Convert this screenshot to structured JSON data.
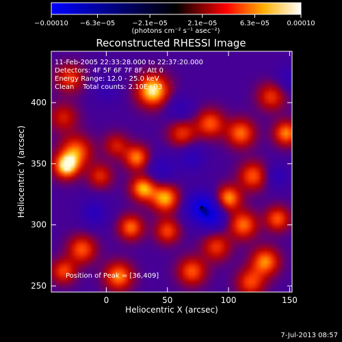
{
  "chart_data": {
    "type": "heatmap",
    "title": "Reconstructed RHESSI Image",
    "xlabel": "Heliocentric X (arcsec)",
    "ylabel": "Heliocentric Y (arcsec)",
    "xlim": [
      -45,
      152
    ],
    "ylim": [
      245,
      442
    ],
    "x_ticks": [
      0,
      50,
      100,
      150
    ],
    "y_ticks": [
      250,
      300,
      350,
      400
    ],
    "colorbar": {
      "min": -0.0001,
      "max": 0.0001,
      "tick_values": [
        -0.0001,
        -6.3e-05,
        -2.1e-05,
        2.1e-05,
        6.3e-05,
        0.0001
      ],
      "tick_labels": [
        "−0.00010",
        "−6.3e−05",
        "−2.1e−05",
        "2.1e−05",
        "6.3e−05",
        "0.00010"
      ],
      "unit_label": "(photons cm⁻² s⁻¹ asec⁻²)"
    },
    "peak": [
      36,
      409
    ],
    "blobs": [
      {
        "x": 38,
        "y": 410,
        "v": 1.0,
        "s": 9
      },
      {
        "x": -30,
        "y": 420,
        "v": 0.55,
        "s": 8
      },
      {
        "x": -35,
        "y": 388,
        "v": 0.45,
        "s": 8
      },
      {
        "x": -25,
        "y": 360,
        "v": 0.7,
        "s": 9
      },
      {
        "x": -33,
        "y": 348,
        "v": 0.95,
        "s": 7
      },
      {
        "x": -5,
        "y": 340,
        "v": 0.5,
        "s": 7
      },
      {
        "x": 8,
        "y": 365,
        "v": 0.45,
        "s": 7
      },
      {
        "x": 25,
        "y": 355,
        "v": 0.75,
        "s": 7
      },
      {
        "x": 30,
        "y": 330,
        "v": 0.85,
        "s": 7
      },
      {
        "x": 48,
        "y": 322,
        "v": 0.85,
        "s": 8
      },
      {
        "x": 50,
        "y": 295,
        "v": 0.6,
        "s": 7
      },
      {
        "x": 62,
        "y": 375,
        "v": 0.55,
        "s": 8
      },
      {
        "x": 85,
        "y": 383,
        "v": 0.65,
        "s": 8
      },
      {
        "x": 110,
        "y": 375,
        "v": 0.7,
        "s": 8
      },
      {
        "x": 135,
        "y": 405,
        "v": 0.55,
        "s": 8
      },
      {
        "x": 147,
        "y": 375,
        "v": 0.75,
        "s": 7
      },
      {
        "x": 120,
        "y": 340,
        "v": 0.65,
        "s": 8
      },
      {
        "x": 100,
        "y": 322,
        "v": 0.8,
        "s": 7
      },
      {
        "x": 112,
        "y": 300,
        "v": 0.7,
        "s": 8
      },
      {
        "x": 140,
        "y": 305,
        "v": 0.65,
        "s": 7
      },
      {
        "x": 130,
        "y": 270,
        "v": 0.75,
        "s": 8
      },
      {
        "x": 118,
        "y": 253,
        "v": 0.6,
        "s": 8
      },
      {
        "x": 90,
        "y": 282,
        "v": 0.55,
        "s": 8
      },
      {
        "x": 70,
        "y": 262,
        "v": 0.65,
        "s": 8
      },
      {
        "x": 20,
        "y": 298,
        "v": 0.7,
        "s": 7
      },
      {
        "x": 10,
        "y": 258,
        "v": 0.75,
        "s": 8
      },
      {
        "x": -20,
        "y": 280,
        "v": 0.65,
        "s": 8
      },
      {
        "x": -35,
        "y": 262,
        "v": 0.6,
        "s": 7
      },
      {
        "x": 78,
        "y": 314,
        "v": -0.85,
        "s": 9
      },
      {
        "x": 88,
        "y": 305,
        "v": -0.45,
        "s": 7
      },
      {
        "x": 45,
        "y": 345,
        "v": -0.35,
        "s": 9
      },
      {
        "x": -10,
        "y": 310,
        "v": -0.4,
        "s": 8
      },
      {
        "x": 70,
        "y": 355,
        "v": -0.35,
        "s": 8
      },
      {
        "x": 140,
        "y": 340,
        "v": -0.35,
        "s": 7
      },
      {
        "x": 150,
        "y": 420,
        "v": -0.3,
        "s": 8
      },
      {
        "x": 60,
        "y": 395,
        "v": -0.3,
        "s": 8
      },
      {
        "x": 0,
        "y": 410,
        "v": -0.25,
        "s": 8
      }
    ]
  },
  "info": {
    "line1": "11-Feb-2005 22:33:28.000 to 22:37:20.000",
    "line2": "Detectors: 4F 5F 6F 7F 8F, Att 0",
    "line3": "Energy Range: 12.0 - 25.0 keV",
    "line4": "Clean    Total counts: 2.10E+03"
  },
  "peak_label": "Position of Peak = [36,409]",
  "footer_date": "7-Jul-2013 08:57"
}
